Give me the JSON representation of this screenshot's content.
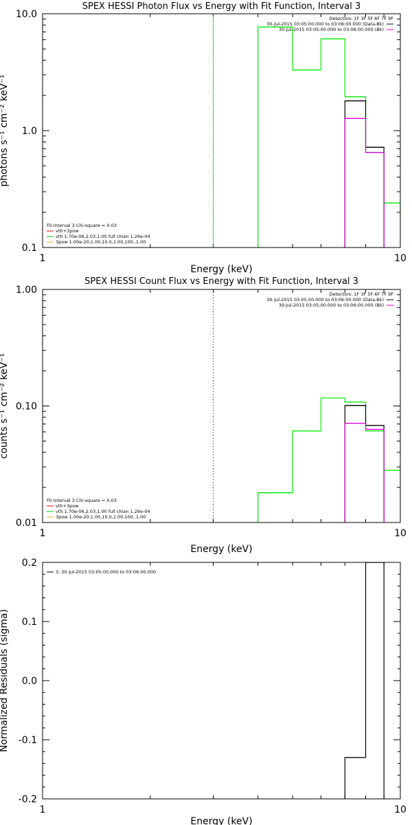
{
  "chart_data": [
    {
      "type": "line",
      "step": true,
      "title": "SPEX HESSI Photon Flux vs Energy with Fit Function, Interval 3",
      "xlabel": "Energy (keV)",
      "ylabel": "photons s⁻¹ cm⁻² keV⁻¹",
      "xscale": "log",
      "yscale": "log",
      "xlim": [
        1,
        10
      ],
      "ylim": [
        0.1,
        10
      ],
      "xticks": [
        {
          "v": 1,
          "label": "1"
        },
        {
          "v": 10,
          "label": "10"
        }
      ],
      "yticks": [
        {
          "v": 0.1,
          "label": "0.1"
        },
        {
          "v": 1,
          "label": "1.0"
        },
        {
          "v": 10,
          "label": "10.0"
        }
      ],
      "vline": {
        "x": 3.0,
        "color": "#00aa00",
        "style": "dashed"
      },
      "info": {
        "detectors": "Detectors: 1F 3F 5F 6F 7F 9F",
        "lines": [
          {
            "text": "30-Jul-2015 03:05:00.000 to 03:06:00.000 (Data-Bk)",
            "color": "#000000"
          },
          {
            "text": "30-Jul-2015 03:05:00.000 to 03:06:00.000 (Bk)",
            "color": "#dd00dd"
          }
        ]
      },
      "legend": {
        "placement": "bottom-left",
        "header": "Fit Interval  3    Chi-square = 0.03",
        "entries": [
          {
            "text": "vth+3pow",
            "color": "#dd0000"
          },
          {
            "text": "vth 1.70e-06,2.03,1.00  full chian 1.26e-04",
            "color": "#00cc00"
          },
          {
            "text": "3pow 1.00e-20,1.00,10.0,1.00,100.,1.00",
            "color": "#ddaa00"
          }
        ]
      },
      "series": [
        {
          "edges": [
            4,
            5,
            6,
            7,
            8,
            9,
            10
          ],
          "values": [
            7.7,
            3.3,
            6.1,
            1.95,
            0.65,
            0.24
          ],
          "color": "#00ee00"
        },
        {
          "edges": [
            7,
            8,
            9
          ],
          "values": [
            1.8,
            0.72
          ],
          "color": "#000000"
        },
        {
          "edges": [
            7,
            8,
            9
          ],
          "values": [
            1.27,
            0.65
          ],
          "color": "#dd00dd"
        }
      ]
    },
    {
      "type": "line",
      "step": true,
      "title": "SPEX HESSI Count Flux vs Energy with Fit Function, Interval 3",
      "xlabel": "Energy (keV)",
      "ylabel": "counts s⁻¹ cm⁻² keV⁻¹",
      "xscale": "log",
      "yscale": "log",
      "xlim": [
        1,
        10
      ],
      "ylim": [
        0.01,
        1
      ],
      "xticks": [
        {
          "v": 1,
          "label": "1"
        },
        {
          "v": 10,
          "label": "10"
        }
      ],
      "yticks": [
        {
          "v": 0.01,
          "label": "0.01"
        },
        {
          "v": 0.1,
          "label": "0.10"
        },
        {
          "v": 1,
          "label": "1.00"
        }
      ],
      "vline": {
        "x": 3.0,
        "color": "#000000",
        "style": "dotted"
      },
      "info": {
        "detectors": "Detectors: 1F 3F 5F 6F 7F 9F",
        "lines": [
          {
            "text": "30-Jul-2015 03:05:00.000 to 03:06:00.000 (Data-Bk)",
            "color": "#000000"
          },
          {
            "text": "30-Jul-2015 03:05:00.000 to 03:06:00.000 (Bk)",
            "color": "#dd00dd"
          }
        ]
      },
      "legend": {
        "placement": "bottom-left",
        "header": "Fit Interval  3    Chi-square = 0.03",
        "entries": [
          {
            "text": "vth+3pow",
            "color": "#dd0000"
          },
          {
            "text": "vth 1.70e-06,2.03,1.00  full chian 1.26e-04",
            "color": "#00cc00"
          },
          {
            "text": "3pow 1.00e-20,1.00,10.0,1.00,100.,1.00",
            "color": "#ddaa00"
          }
        ]
      },
      "series": [
        {
          "edges": [
            4,
            5,
            6,
            7,
            8,
            9,
            10
          ],
          "values": [
            0.018,
            0.061,
            0.117,
            0.108,
            0.061,
            0.028
          ],
          "color": "#00ee00"
        },
        {
          "edges": [
            7,
            8,
            9
          ],
          "values": [
            0.101,
            0.068
          ],
          "color": "#000000"
        },
        {
          "edges": [
            7,
            8,
            9
          ],
          "values": [
            0.071,
            0.063
          ],
          "color": "#dd00dd"
        }
      ]
    },
    {
      "type": "line",
      "step": true,
      "title": "",
      "xlabel": "Energy (keV)",
      "ylabel": "Normalized Residuals (sigma)",
      "xscale": "log",
      "yscale": "linear",
      "xlim": [
        1,
        10
      ],
      "ylim": [
        -0.2,
        0.2
      ],
      "xticks": [
        {
          "v": 1,
          "label": "1"
        },
        {
          "v": 10,
          "label": "10"
        }
      ],
      "yticks": [
        {
          "v": -0.2,
          "label": "-0.2"
        },
        {
          "v": -0.1,
          "label": "-0.1"
        },
        {
          "v": 0,
          "label": "0.0"
        },
        {
          "v": 0.1,
          "label": "0.1"
        },
        {
          "v": 0.2,
          "label": "0.2"
        }
      ],
      "legend": {
        "placement": "top-left",
        "entries": [
          {
            "text": "3, 30-Jul-2015 03:05:00.000 to 03:06:00.000",
            "color": "#000000"
          }
        ]
      },
      "series": [
        {
          "edges": [
            7,
            8,
            9
          ],
          "values": [
            -0.13,
            0.2
          ],
          "color": "#000000"
        }
      ]
    }
  ]
}
